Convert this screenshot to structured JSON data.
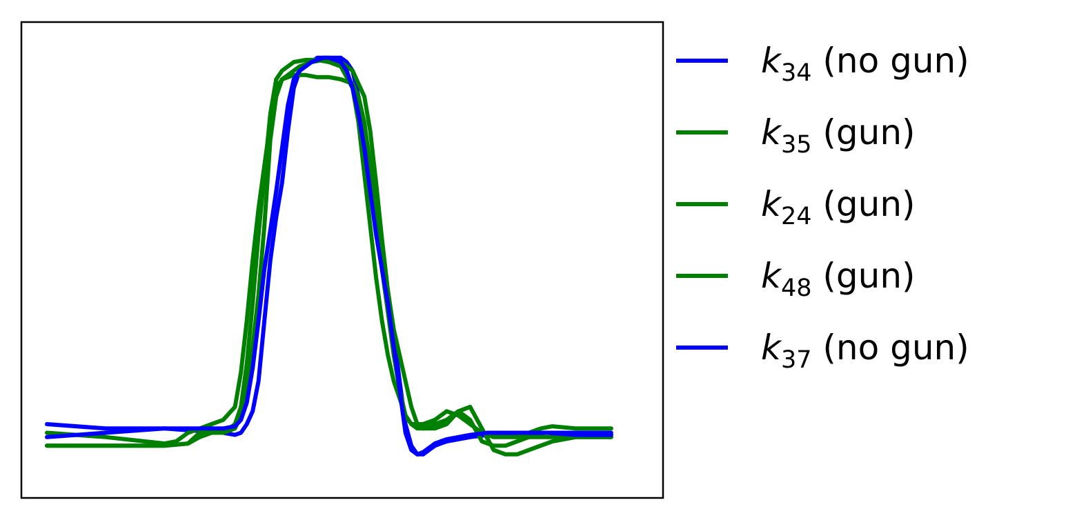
{
  "chart_data": {
    "type": "line",
    "title": "",
    "xlabel": "",
    "ylabel": "",
    "xlim": [
      0,
      100
    ],
    "ylim": [
      0,
      100
    ],
    "xticks": [],
    "yticks": [],
    "grid": false,
    "legend_position": "right-outside",
    "series": [
      {
        "name": "k34 (no gun)",
        "label_var": "k",
        "label_sub": "34",
        "label_suffix": " (no gun)",
        "color": "#0000ff",
        "x": [
          0,
          10,
          20,
          25,
          30,
          32,
          33,
          34,
          35,
          36,
          37,
          38,
          39,
          40,
          41,
          42,
          43,
          44,
          45,
          46,
          47,
          48,
          49,
          50,
          51,
          52,
          53,
          54,
          55,
          56,
          57,
          58,
          59,
          60,
          61,
          62,
          63,
          64,
          65,
          66,
          67,
          68,
          70,
          72,
          75,
          80,
          85,
          90,
          96
        ],
        "y": [
          12,
          11,
          11,
          10.5,
          10,
          9.5,
          10,
          12,
          15,
          22,
          36,
          50,
          60,
          68,
          80,
          90,
          94,
          95,
          96,
          97,
          97,
          97,
          97,
          97,
          96,
          94,
          88,
          80,
          70,
          60,
          52,
          43,
          33,
          22,
          12,
          7,
          5,
          5,
          6,
          7,
          7.5,
          8,
          8.5,
          9,
          9.5,
          9.5,
          10,
          10,
          10
        ]
      },
      {
        "name": "k35 (gun)",
        "label_var": "k",
        "label_sub": "35",
        "label_suffix": " (gun)",
        "color": "#008000",
        "x": [
          0,
          10,
          20,
          24,
          26,
          28,
          30,
          32,
          33,
          34,
          35,
          36,
          37,
          38,
          39,
          40,
          41,
          42,
          43,
          45,
          47,
          50,
          52,
          54,
          55,
          56,
          57,
          58,
          59,
          60,
          61,
          62,
          63,
          64,
          66,
          68,
          70,
          72,
          74,
          76,
          78,
          80,
          82,
          85,
          90,
          96
        ],
        "y": [
          7,
          7,
          7,
          7.5,
          10,
          11,
          10,
          11,
          14,
          20,
          30,
          42,
          58,
          78,
          88,
          92,
          93,
          94,
          95,
          96,
          96.5,
          96,
          94,
          88,
          80,
          68,
          55,
          43,
          34,
          28,
          22,
          16,
          12,
          11,
          11,
          12,
          15,
          13,
          8,
          7,
          7,
          8,
          9,
          9,
          9,
          9
        ]
      },
      {
        "name": "k24 (gun)",
        "label_var": "k",
        "label_sub": "24",
        "label_suffix": " (gun)",
        "color": "#008000",
        "x": [
          0,
          10,
          20,
          22,
          24,
          26,
          28,
          30,
          32,
          33,
          34,
          35,
          36,
          37,
          38,
          39,
          40,
          41,
          42,
          44,
          46,
          48,
          50,
          52,
          53,
          54,
          55,
          56,
          57,
          58,
          59,
          60,
          61,
          62,
          64,
          66,
          68,
          70,
          72,
          74,
          76,
          78,
          80,
          82,
          84,
          86,
          90,
          96
        ],
        "y": [
          10,
          9,
          7.5,
          8,
          10,
          11,
          12,
          13,
          16,
          24,
          36,
          50,
          62,
          72,
          82,
          90,
          92,
          92.5,
          93,
          93,
          92.5,
          92.5,
          92,
          91,
          88,
          82,
          72,
          60,
          48,
          38,
          28,
          20,
          14,
          12,
          12,
          13,
          15,
          14,
          12,
          10,
          9,
          9,
          9,
          10,
          11,
          11.5,
          11,
          11
        ]
      },
      {
        "name": "k48 (gun)",
        "label_var": "k",
        "label_sub": "48",
        "label_suffix": " (gun)",
        "color": "#008000",
        "x": [
          0,
          10,
          20,
          24,
          26,
          28,
          30,
          32,
          33,
          34,
          35,
          36,
          37,
          38,
          39,
          40,
          41,
          42,
          44,
          46,
          48,
          50,
          52,
          53,
          54,
          55,
          56,
          57,
          58,
          59,
          60,
          61,
          62,
          63,
          64,
          66,
          68,
          70,
          72,
          74,
          76,
          78,
          80,
          82,
          86,
          90,
          96
        ],
        "y": [
          7,
          7,
          7,
          7.5,
          9,
          10,
          10,
          12,
          16,
          26,
          40,
          56,
          70,
          84,
          92,
          94,
          95,
          96,
          96.5,
          96.5,
          96,
          95,
          90,
          82,
          70,
          58,
          46,
          36,
          28,
          22,
          18,
          14,
          12,
          11,
          11,
          12,
          13,
          15,
          16,
          11,
          6,
          5,
          5,
          6,
          8,
          9,
          9
        ]
      },
      {
        "name": "k37 (no gun)",
        "label_var": "k",
        "label_sub": "37",
        "label_suffix": " (no gun)",
        "color": "#0000ff",
        "x": [
          0,
          10,
          20,
          26,
          30,
          32,
          33,
          34,
          35,
          36,
          37,
          38,
          39,
          40,
          41,
          42,
          43,
          44,
          45,
          46,
          47,
          48,
          49,
          50,
          51,
          52,
          53,
          54,
          55,
          56,
          57,
          58,
          59,
          60,
          61,
          62,
          63,
          64,
          65,
          66,
          67,
          68,
          70,
          72,
          75,
          80,
          85,
          90,
          96
        ],
        "y": [
          9,
          10,
          11,
          11,
          11,
          11.5,
          13,
          17,
          25,
          36,
          48,
          57,
          66,
          76,
          86,
          92,
          94,
          95,
          96,
          96.5,
          97,
          97,
          96.5,
          96,
          94,
          90,
          84,
          76,
          66,
          56,
          48,
          40,
          30,
          20,
          10,
          6,
          5,
          5.5,
          6.5,
          7.5,
          8,
          8.5,
          9,
          9.5,
          10,
          10,
          10,
          9.5,
          9.5
        ]
      }
    ]
  }
}
